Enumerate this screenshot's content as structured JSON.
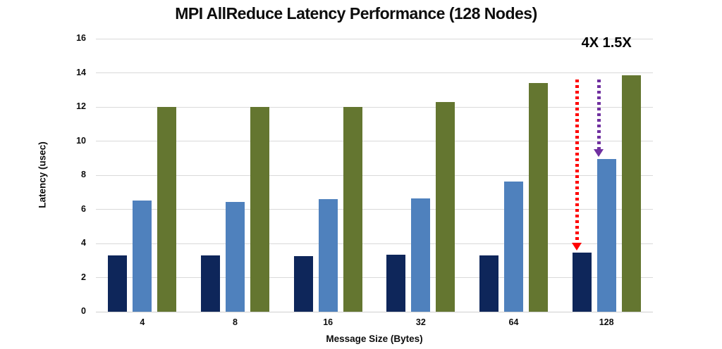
{
  "chart_data": {
    "type": "bar",
    "title": "MPI AllReduce Latency Performance (128 Nodes)",
    "xlabel": "Message Size (Bytes)",
    "ylabel": "Latency (usec)",
    "ylim": [
      0,
      16
    ],
    "yticks": [
      0,
      2,
      4,
      6,
      8,
      10,
      12,
      14,
      16
    ],
    "grid": true,
    "legend_position": "none",
    "categories": [
      "4",
      "8",
      "16",
      "32",
      "64",
      "128"
    ],
    "series": [
      {
        "name": "dark-navy",
        "color": "#0e265a",
        "values": [
          3.3,
          3.3,
          3.25,
          3.35,
          3.3,
          3.45
        ]
      },
      {
        "name": "medium-blue",
        "color": "#4f81bd",
        "values": [
          6.5,
          6.45,
          6.6,
          6.65,
          7.65,
          8.95
        ]
      },
      {
        "name": "olive-green",
        "color": "#647630",
        "values": [
          12.0,
          12.0,
          12.0,
          12.3,
          13.4,
          13.85
        ]
      }
    ],
    "annotation": {
      "label": "4X 1.5X",
      "arrows": [
        {
          "color": "#ff0000",
          "style": "dotted",
          "target_category": "128",
          "target_series": "dark-navy"
        },
        {
          "color": "#7030a0",
          "style": "dotted",
          "target_category": "128",
          "target_series": "medium-blue"
        }
      ]
    }
  },
  "colors": {
    "background": "#ffffff",
    "gridline": "#d9d9d9",
    "axis_text": "#0d0d0d"
  }
}
